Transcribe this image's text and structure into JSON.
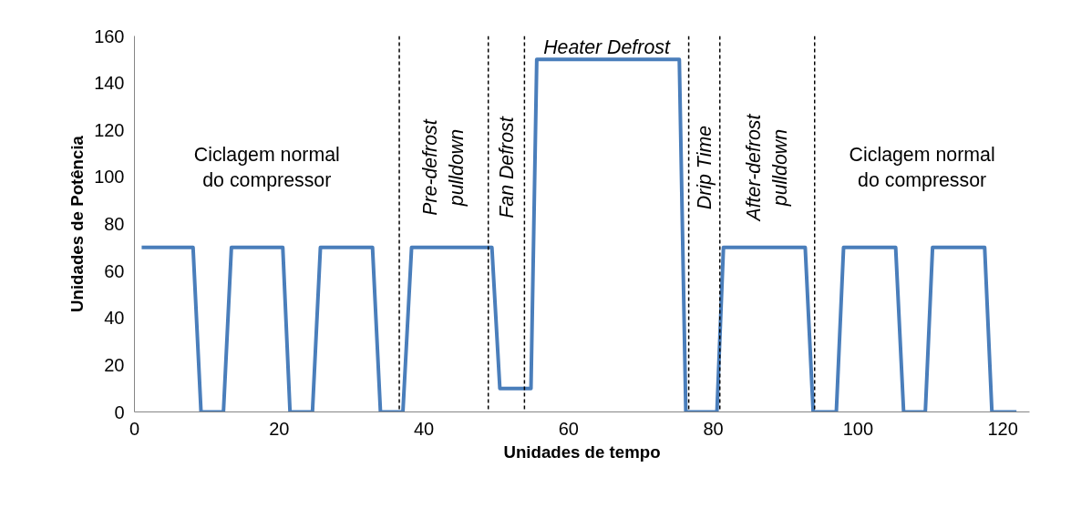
{
  "chart_data": {
    "type": "line",
    "xlabel": "Unidades de tempo",
    "ylabel": "Unidades de Potência",
    "x": [
      1,
      8.1,
      9.2,
      12.3,
      13.4,
      20.5,
      21.5,
      24.6,
      25.7,
      32.9,
      34,
      37.1,
      38.3,
      49.4,
      50.5,
      54.8,
      55.6,
      75.3,
      76.2,
      80.5,
      81.4,
      92.7,
      93.8,
      97,
      98,
      105.2,
      106.3,
      109.3,
      110.3,
      117.5,
      118.5,
      121.9
    ],
    "series": [
      {
        "color": "#4a7ebb",
        "values": [
          70,
          70,
          0,
          0,
          70,
          70,
          0,
          0,
          70,
          70,
          0,
          0,
          70,
          70,
          10,
          10,
          150,
          150,
          0,
          0,
          70,
          70,
          0,
          0,
          70,
          70,
          0,
          0,
          70,
          70,
          0,
          0
        ]
      }
    ],
    "xlim": [
      0,
      123.7
    ],
    "ylim": [
      0,
      160
    ],
    "xticks": [
      0,
      20,
      40,
      60,
      80,
      100,
      120
    ],
    "yticks": [
      0,
      20,
      40,
      60,
      80,
      100,
      120,
      140,
      160
    ],
    "line_style": "solid",
    "marker": "none",
    "ref_lines": [
      {
        "axis": "x",
        "value": 36.6,
        "color": "#000000",
        "line_style": "dashed"
      },
      {
        "axis": "x",
        "value": 48.9,
        "color": "#000000",
        "line_style": "dashed"
      },
      {
        "axis": "x",
        "value": 53.9,
        "color": "#000000",
        "line_style": "dashed"
      },
      {
        "axis": "x",
        "value": 76.6,
        "color": "#000000",
        "line_style": "dashed"
      },
      {
        "axis": "x",
        "value": 80.9,
        "color": "#000000",
        "line_style": "dashed"
      },
      {
        "axis": "x",
        "value": 94,
        "color": "#000000",
        "line_style": "dashed"
      }
    ],
    "annotations": [
      "Ciclagem normal\ndo compressor",
      "Pre-defrost\npulldown",
      "Fan Defrost",
      "Heater Defrost",
      "Drip Time",
      "After-defrost\npulldown",
      "Ciclagem normal\ndo compressor"
    ]
  }
}
